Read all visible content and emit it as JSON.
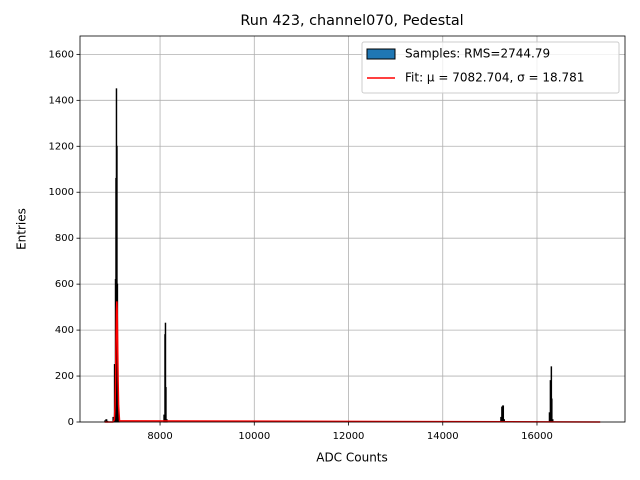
{
  "chart_data": {
    "type": "histogram",
    "title": "Run 423, channel070, Pedestal",
    "xlabel": "ADC Counts",
    "ylabel": "Entries",
    "name": "Samples: RMS=2744.79",
    "color": "#1f77b4",
    "edgecolor": "#000000",
    "bins": [
      6827,
      6850,
      6870,
      6890,
      7000,
      7030,
      7050,
      7060,
      7070,
      7080,
      7090,
      7100,
      7110,
      7130,
      8080,
      8100,
      8110,
      8120,
      8130,
      8150,
      15230,
      15250,
      15270,
      15290,
      15310,
      16260,
      16280,
      16300,
      16310,
      16320,
      16340,
      17342
    ],
    "counts": [
      5,
      10,
      3,
      0,
      20,
      250,
      620,
      1060,
      1450,
      1200,
      600,
      150,
      20,
      0,
      30,
      380,
      430,
      150,
      10,
      0,
      20,
      65,
      70,
      10,
      0,
      40,
      180,
      240,
      100,
      10,
      0
    ],
    "fit": {
      "name": "Fit: μ = 7082.704, σ = 18.781",
      "color": "#ff0000",
      "x": [
        6827,
        7000,
        7030,
        7045,
        7055,
        7065,
        7075,
        7083,
        7090,
        7100,
        7110,
        7120,
        7140,
        17342
      ],
      "values": [
        0,
        0,
        10,
        70,
        177,
        337,
        483,
        525,
        487,
        344,
        182,
        73,
        5,
        0
      ]
    },
    "xlim": [
      6301,
      17868
    ],
    "ylim": [
      0,
      1680
    ],
    "xticks": [
      8000,
      10000,
      12000,
      14000,
      16000
    ],
    "yticks": [
      0,
      200,
      400,
      600,
      800,
      1000,
      1200,
      1400,
      1600
    ],
    "grid": true,
    "legend": "upper right"
  }
}
